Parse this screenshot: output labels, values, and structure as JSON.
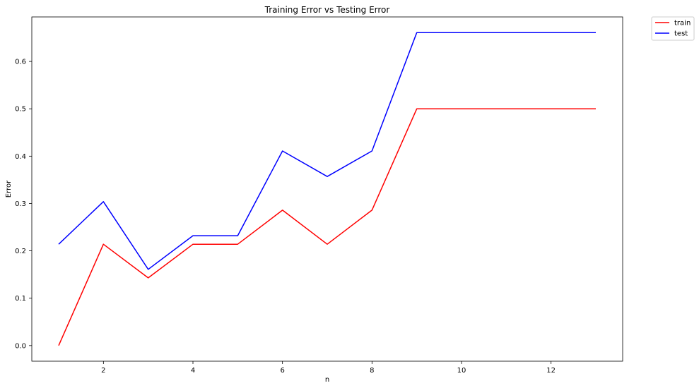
{
  "chart_data": {
    "type": "line",
    "title": "Training Error vs Testing Error",
    "xlabel": "n",
    "ylabel": "Error",
    "x": [
      1,
      2,
      3,
      4,
      5,
      6,
      7,
      8,
      9,
      10,
      11,
      12,
      13
    ],
    "series": [
      {
        "name": "train",
        "color": "#ff0000",
        "values": [
          0.0,
          0.214,
          0.143,
          0.214,
          0.214,
          0.286,
          0.214,
          0.286,
          0.5,
          0.5,
          0.5,
          0.5,
          0.5
        ]
      },
      {
        "name": "test",
        "color": "#0000ff",
        "values": [
          0.214,
          0.304,
          0.161,
          0.232,
          0.232,
          0.411,
          0.357,
          0.411,
          0.661,
          0.661,
          0.661,
          0.661,
          0.661
        ]
      }
    ],
    "xlim": [
      0.4,
      13.6
    ],
    "ylim": [
      -0.033,
      0.694
    ],
    "xticks": [
      2,
      4,
      6,
      8,
      10,
      12
    ],
    "yticks": [
      0.0,
      0.1,
      0.2,
      0.3,
      0.4,
      0.5,
      0.6
    ],
    "xtick_labels": [
      "2",
      "4",
      "6",
      "8",
      "10",
      "12"
    ],
    "ytick_labels": [
      "0.0",
      "0.1",
      "0.2",
      "0.3",
      "0.4",
      "0.5",
      "0.6"
    ],
    "grid": false,
    "legend_position": "outside-top-right"
  }
}
